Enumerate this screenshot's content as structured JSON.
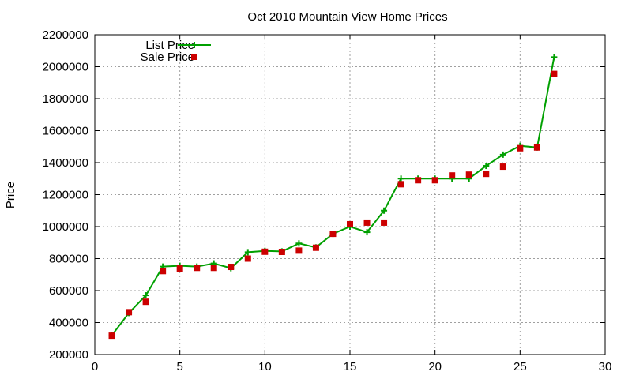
{
  "chart_data": {
    "type": "line",
    "title": "Oct 2010 Mountain View Home Prices",
    "xlabel": "",
    "ylabel": "Price",
    "xlim": [
      0,
      30
    ],
    "ylim": [
      200000,
      2200000
    ],
    "xticks": [
      0,
      5,
      10,
      15,
      20,
      25,
      30
    ],
    "yticks": [
      200000,
      400000,
      600000,
      800000,
      1000000,
      1200000,
      1400000,
      1600000,
      1800000,
      2000000,
      2200000
    ],
    "grid": true,
    "legend_position": "top-left",
    "series": [
      {
        "name": "List Price",
        "style": "line+cross",
        "color": "#00a000",
        "x": [
          1,
          2,
          3,
          4,
          5,
          6,
          7,
          8,
          9,
          10,
          11,
          12,
          13,
          14,
          15,
          16,
          17,
          18,
          19,
          20,
          21,
          22,
          23,
          24,
          25,
          26,
          27
        ],
        "y": [
          320000,
          460000,
          570000,
          750000,
          755000,
          750000,
          770000,
          740000,
          840000,
          848000,
          845000,
          895000,
          870000,
          955000,
          1000000,
          965000,
          1100000,
          1300000,
          1300000,
          1300000,
          1300000,
          1300000,
          1380000,
          1450000,
          1505000,
          1495000,
          2060000
        ]
      },
      {
        "name": "Sale Price",
        "style": "square",
        "color": "#cc0000",
        "x": [
          1,
          2,
          3,
          4,
          5,
          6,
          7,
          8,
          9,
          10,
          11,
          12,
          13,
          14,
          15,
          16,
          17,
          18,
          19,
          20,
          21,
          22,
          23,
          24,
          25,
          26,
          27
        ],
        "y": [
          318000,
          465000,
          530000,
          722000,
          738000,
          742000,
          742000,
          748000,
          800000,
          843000,
          842000,
          850000,
          868000,
          955000,
          1015000,
          1025000,
          1025000,
          1265000,
          1290000,
          1290000,
          1320000,
          1325000,
          1330000,
          1375000,
          1490000,
          1495000,
          1955000
        ]
      }
    ]
  }
}
